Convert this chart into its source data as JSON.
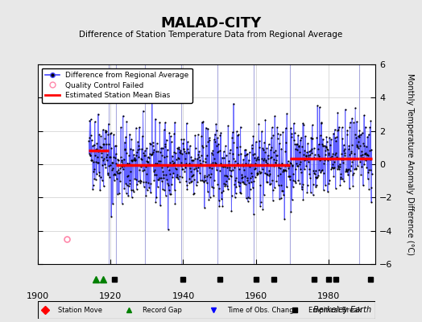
{
  "title": "MALAD-CITY",
  "subtitle": "Difference of Station Temperature Data from Regional Average",
  "ylabel": "Monthly Temperature Anomaly Difference (°C)",
  "xlabel_credit": "Berkeley Earth",
  "xlim": [
    1900,
    1993
  ],
  "ylim": [
    -6,
    6
  ],
  "yticks": [
    -6,
    -4,
    -2,
    0,
    2,
    4,
    6
  ],
  "xticks": [
    1900,
    1920,
    1940,
    1960,
    1980
  ],
  "data_start_year": 1914.0,
  "data_end_year": 1992.0,
  "seed": 42,
  "bg_color": "#e8e8e8",
  "plot_bg_color": "#ffffff",
  "line_color": "#4444ff",
  "dot_color": "#000000",
  "bias_color": "#ff0000",
  "vertical_lines": [
    1919.5,
    1921.5,
    1929.5
  ],
  "vertical_lines2": [
    1939.5,
    1949.5,
    1959.5,
    1969.5,
    1988.5
  ],
  "record_gaps": [
    1916.0,
    1918.0
  ],
  "empirical_breaks": [
    1921.0,
    1940.0,
    1950.0,
    1960.0,
    1965.0,
    1976.0,
    1980.0,
    1982.0,
    1991.5
  ],
  "bias_segments": [
    {
      "x_start": 1914.0,
      "x_end": 1919.5,
      "bias": 0.8
    },
    {
      "x_start": 1921.5,
      "x_end": 1939.5,
      "bias": -0.05
    },
    {
      "x_start": 1939.5,
      "x_end": 1949.5,
      "bias": -0.05
    },
    {
      "x_start": 1949.5,
      "x_end": 1959.5,
      "bias": -0.05
    },
    {
      "x_start": 1959.5,
      "x_end": 1969.5,
      "bias": -0.05
    },
    {
      "x_start": 1969.5,
      "x_end": 1988.5,
      "bias": 0.35
    },
    {
      "x_start": 1988.5,
      "x_end": 1992.0,
      "bias": 0.35
    }
  ],
  "qc_failed_x": [
    1908.0
  ],
  "qc_failed_y": [
    -4.5
  ]
}
